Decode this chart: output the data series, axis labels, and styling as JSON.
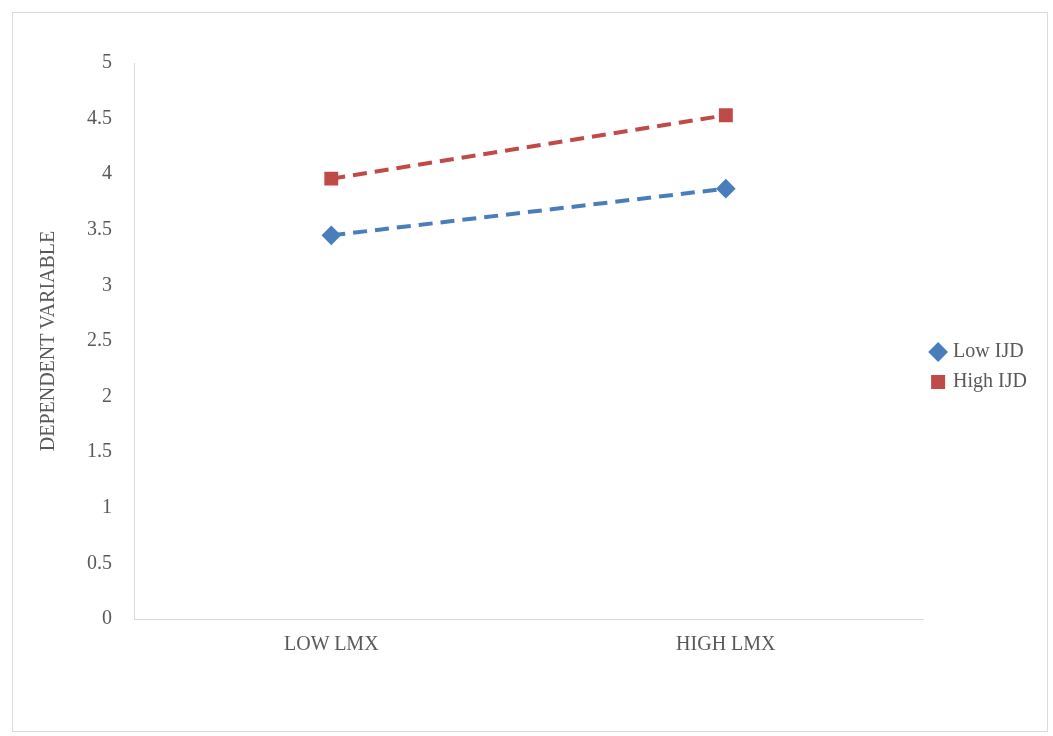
{
  "chart_data": {
    "type": "line",
    "ylabel": "DEPENDENT VARIABLE",
    "categories": [
      "LOW LMX",
      "HIGH LMX"
    ],
    "series": [
      {
        "name": "Low IJD",
        "color": "#4a7ebb",
        "values": [
          3.45,
          3.87
        ],
        "marker": "diamond"
      },
      {
        "name": "High IJD",
        "color": "#be4b48",
        "values": [
          3.96,
          4.53
        ],
        "marker": "square"
      }
    ],
    "ylim": [
      0,
      5
    ],
    "yticks": [
      0,
      0.5,
      1,
      1.5,
      2,
      2.5,
      3,
      3.5,
      4,
      4.5,
      5
    ],
    "grid": false,
    "legend": "right",
    "line_style": "dashed"
  }
}
